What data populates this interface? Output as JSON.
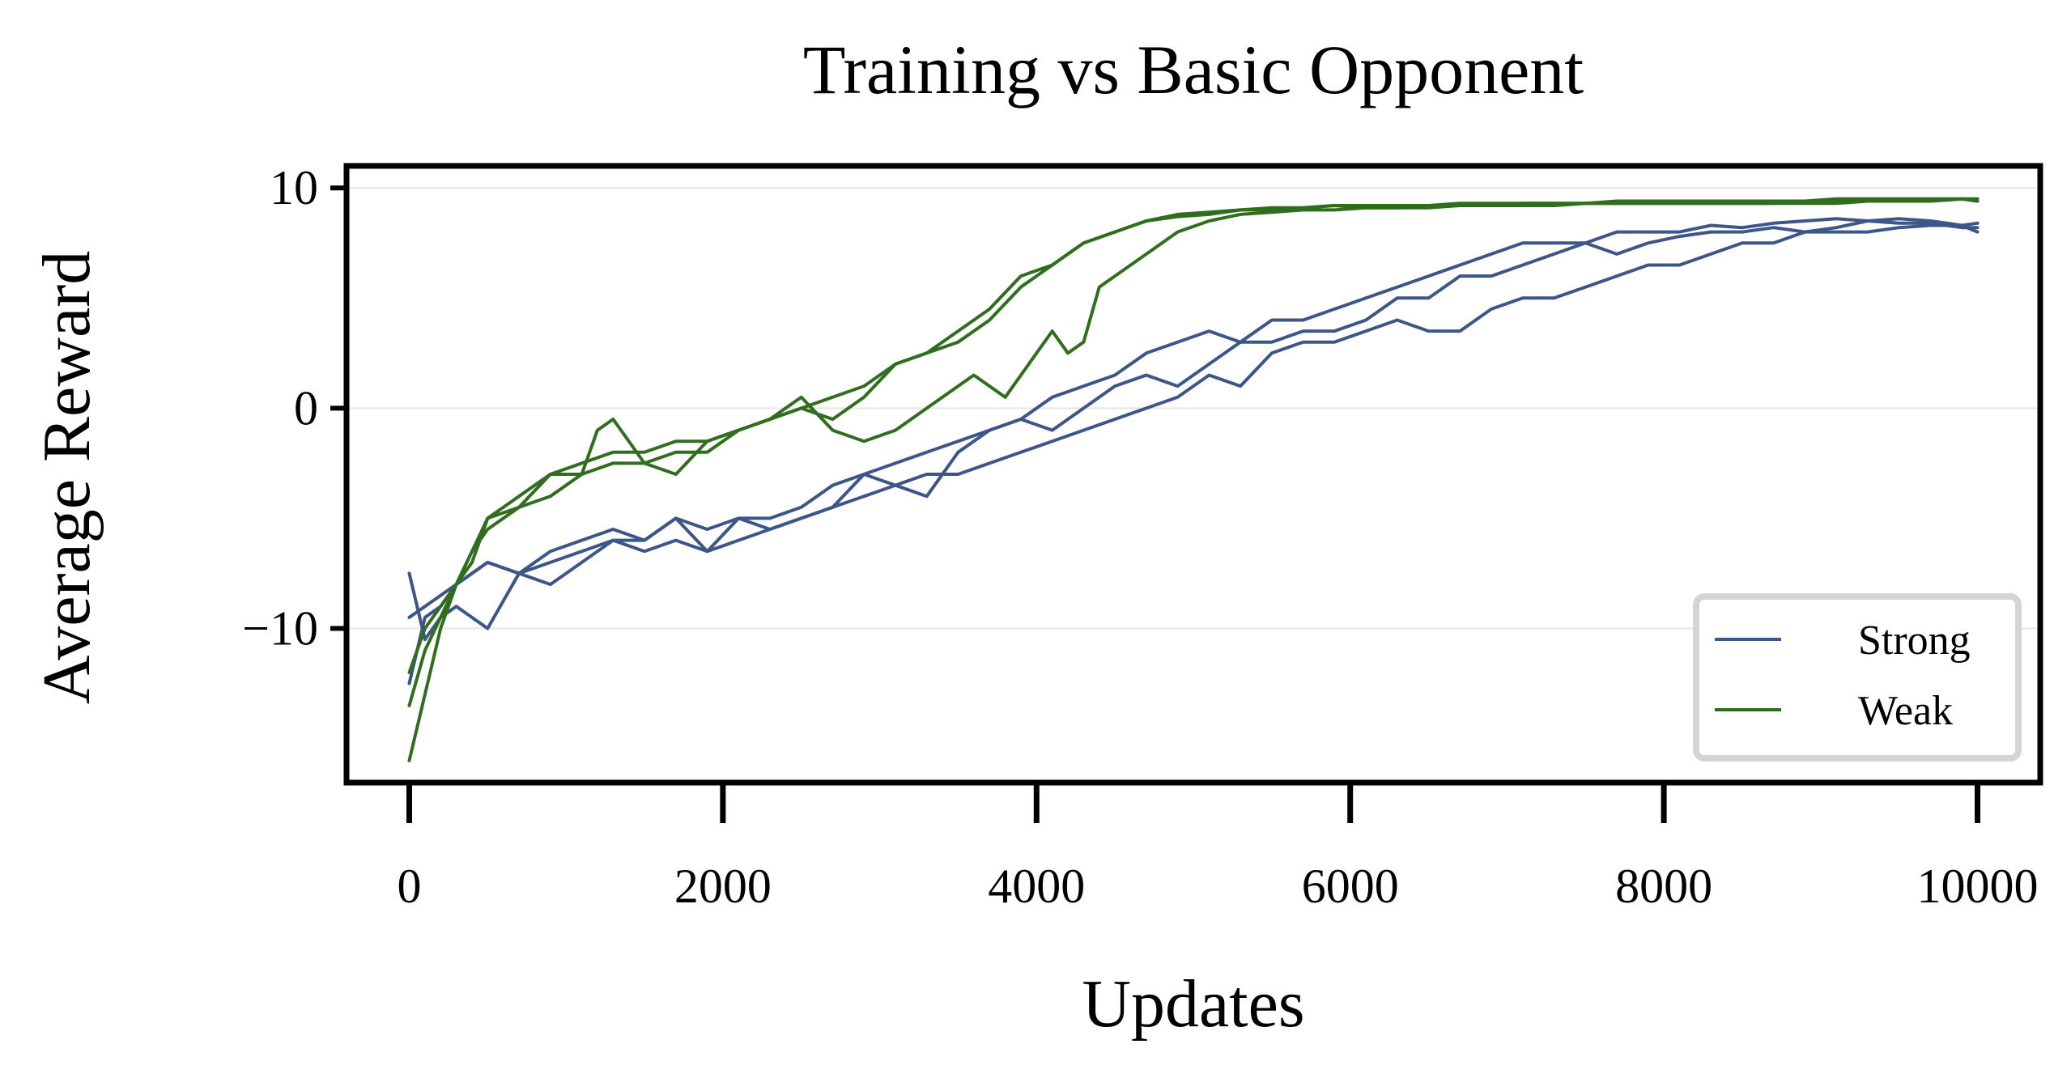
{
  "chart_data": {
    "type": "line",
    "title": "Training vs Basic Opponent",
    "xlabel": "Updates",
    "ylabel": "Average Reward",
    "xlim": [
      -400,
      10400
    ],
    "ylim": [
      -17,
      11
    ],
    "xticks": [
      0,
      2000,
      4000,
      6000,
      8000,
      10000
    ],
    "yticks": [
      -10,
      0,
      10
    ],
    "ytick_labels": [
      "−10",
      "0",
      "10"
    ],
    "grid": "horizontal",
    "legend": {
      "position": "lower-right",
      "entries": [
        {
          "label": "Strong",
          "color": "#3d5688"
        },
        {
          "label": "Weak",
          "color": "#2f6e1e"
        }
      ]
    },
    "series": [
      {
        "group": "Strong",
        "color": "#3d5688",
        "x": [
          0,
          100,
          200,
          300,
          500,
          700,
          900,
          1100,
          1300,
          1500,
          1700,
          1900,
          2100,
          2300,
          2500,
          2700,
          2900,
          3100,
          3300,
          3500,
          3700,
          3900,
          4100,
          4300,
          4500,
          4700,
          4900,
          5100,
          5300,
          5500,
          5700,
          5900,
          6100,
          6300,
          6500,
          6700,
          6900,
          7100,
          7300,
          7500,
          7700,
          7900,
          8100,
          8300,
          8500,
          8700,
          8900,
          9100,
          9300,
          9500,
          9700,
          9900,
          10000
        ],
        "y": [
          -7.5,
          -10.5,
          -9.5,
          -9.0,
          -10.0,
          -7.5,
          -8.0,
          -7.0,
          -6.0,
          -6.5,
          -6.0,
          -6.5,
          -5.0,
          -5.5,
          -5.0,
          -4.5,
          -3.0,
          -3.5,
          -4.0,
          -2.0,
          -1.0,
          -0.5,
          -1.0,
          0.0,
          1.0,
          1.5,
          1.0,
          2.0,
          3.0,
          3.0,
          3.5,
          3.5,
          4.0,
          5.0,
          5.0,
          6.0,
          6.0,
          6.5,
          7.0,
          7.5,
          7.0,
          7.5,
          7.8,
          8.0,
          8.0,
          8.2,
          8.0,
          8.2,
          8.5,
          8.4,
          8.4,
          8.2,
          8.2
        ]
      },
      {
        "group": "Strong",
        "color": "#3d5688",
        "x": [
          0,
          100,
          200,
          300,
          500,
          700,
          900,
          1100,
          1300,
          1500,
          1700,
          1900,
          2100,
          2300,
          2500,
          2700,
          2900,
          3100,
          3300,
          3500,
          3700,
          3900,
          4100,
          4300,
          4500,
          4700,
          4900,
          5100,
          5300,
          5500,
          5700,
          5900,
          6100,
          6300,
          6500,
          6700,
          6900,
          7100,
          7300,
          7500,
          7700,
          7900,
          8100,
          8300,
          8500,
          8700,
          8900,
          9100,
          9300,
          9500,
          9700,
          9900,
          10000
        ],
        "y": [
          -12.5,
          -9.5,
          -9.0,
          -8.0,
          -7.0,
          -7.5,
          -7.0,
          -6.5,
          -6.0,
          -6.0,
          -5.0,
          -5.5,
          -5.0,
          -5.0,
          -4.5,
          -3.5,
          -3.0,
          -2.5,
          -2.0,
          -1.5,
          -1.0,
          -0.5,
          0.5,
          1.0,
          1.5,
          2.5,
          3.0,
          3.5,
          3.0,
          4.0,
          4.0,
          4.5,
          5.0,
          5.5,
          6.0,
          6.5,
          7.0,
          7.5,
          7.5,
          7.5,
          8.0,
          8.0,
          8.0,
          8.3,
          8.2,
          8.4,
          8.5,
          8.6,
          8.5,
          8.6,
          8.5,
          8.3,
          8.4
        ]
      },
      {
        "group": "Strong",
        "color": "#3d5688",
        "x": [
          0,
          100,
          200,
          300,
          500,
          700,
          900,
          1100,
          1300,
          1500,
          1700,
          1900,
          2100,
          2300,
          2500,
          2700,
          2900,
          3100,
          3300,
          3500,
          3700,
          3900,
          4100,
          4300,
          4500,
          4700,
          4900,
          5100,
          5300,
          5500,
          5700,
          5900,
          6100,
          6300,
          6500,
          6700,
          6900,
          7100,
          7300,
          7500,
          7700,
          7900,
          8100,
          8300,
          8500,
          8700,
          8900,
          9100,
          9300,
          9500,
          9700,
          9900,
          10000
        ],
        "y": [
          -9.5,
          -9.0,
          -8.5,
          -8.0,
          -7.0,
          -7.5,
          -6.5,
          -6.0,
          -5.5,
          -6.0,
          -5.0,
          -6.5,
          -6.0,
          -5.5,
          -5.0,
          -4.5,
          -4.0,
          -3.5,
          -3.0,
          -3.0,
          -2.5,
          -2.0,
          -1.5,
          -1.0,
          -0.5,
          0.0,
          0.5,
          1.5,
          1.0,
          2.5,
          3.0,
          3.0,
          3.5,
          4.0,
          3.5,
          3.5,
          4.5,
          5.0,
          5.0,
          5.5,
          6.0,
          6.5,
          6.5,
          7.0,
          7.5,
          7.5,
          8.0,
          8.0,
          8.0,
          8.2,
          8.3,
          8.3,
          8.0
        ]
      },
      {
        "group": "Weak",
        "color": "#2f6e1e",
        "x": [
          0,
          100,
          200,
          300,
          400,
          500,
          700,
          900,
          1100,
          1300,
          1500,
          1700,
          1900,
          2100,
          2300,
          2500,
          2700,
          2900,
          3100,
          3300,
          3500,
          3700,
          3900,
          4100,
          4300,
          4500,
          4700,
          4900,
          5100,
          5300,
          5500,
          5700,
          5900,
          6100,
          6300,
          6500,
          6700,
          6900,
          7100,
          7300,
          7500,
          7700,
          7900,
          8100,
          8300,
          8500,
          8700,
          8900,
          9100,
          9300,
          9500,
          9700,
          9900,
          10000
        ],
        "y": [
          -16.0,
          -13.0,
          -10.0,
          -8.0,
          -7.0,
          -5.0,
          -4.0,
          -3.0,
          -2.5,
          -2.0,
          -2.0,
          -1.5,
          -1.5,
          -1.0,
          -0.5,
          0.0,
          0.5,
          1.0,
          2.0,
          2.5,
          3.5,
          4.5,
          6.0,
          6.5,
          7.5,
          8.0,
          8.5,
          8.7,
          8.8,
          9.0,
          9.0,
          9.1,
          9.2,
          9.1,
          9.1,
          9.2,
          9.2,
          9.2,
          9.3,
          9.3,
          9.3,
          9.3,
          9.3,
          9.3,
          9.3,
          9.3,
          9.3,
          9.4,
          9.4,
          9.4,
          9.4,
          9.4,
          9.5,
          9.4
        ]
      },
      {
        "group": "Weak",
        "color": "#2f6e1e",
        "x": [
          0,
          100,
          200,
          300,
          400,
          500,
          700,
          900,
          1100,
          1300,
          1500,
          1700,
          1900,
          2100,
          2300,
          2500,
          2700,
          2900,
          3100,
          3300,
          3500,
          3700,
          3900,
          4100,
          4300,
          4500,
          4700,
          4900,
          5100,
          5300,
          5500,
          5700,
          5900,
          6100,
          6300,
          6500,
          6700,
          6900,
          7100,
          7300,
          7500,
          7700,
          7900,
          8100,
          8300,
          8500,
          8700,
          8900,
          9100,
          9300,
          9500,
          9700,
          9900,
          10000
        ],
        "y": [
          -12.0,
          -10.0,
          -9.0,
          -8.0,
          -6.5,
          -5.0,
          -4.5,
          -3.0,
          -3.0,
          -2.5,
          -2.5,
          -2.0,
          -2.0,
          -1.0,
          -0.5,
          0.0,
          -0.5,
          0.5,
          2.0,
          2.5,
          3.0,
          4.0,
          5.5,
          6.5,
          7.5,
          8.0,
          8.5,
          8.8,
          8.9,
          9.0,
          9.1,
          9.1,
          9.2,
          9.2,
          9.2,
          9.2,
          9.3,
          9.3,
          9.3,
          9.3,
          9.3,
          9.4,
          9.4,
          9.4,
          9.4,
          9.4,
          9.4,
          9.4,
          9.5,
          9.5,
          9.5,
          9.5,
          9.5,
          9.5
        ]
      },
      {
        "group": "Weak",
        "color": "#2f6e1e",
        "x": [
          0,
          100,
          200,
          300,
          400,
          500,
          700,
          900,
          1100,
          1200,
          1300,
          1500,
          1700,
          1900,
          2100,
          2300,
          2500,
          2700,
          2900,
          3100,
          3300,
          3500,
          3600,
          3800,
          4000,
          4100,
          4200,
          4300,
          4400,
          4500,
          4700,
          4900,
          5100,
          5300,
          5500,
          5700,
          5900,
          6100,
          6300,
          6500,
          6700,
          6900,
          7100,
          7300,
          7500,
          7700,
          7900,
          8100,
          8300,
          8500,
          8700,
          8900,
          9100,
          9300,
          9500,
          9700,
          9900,
          10000
        ],
        "y": [
          -13.5,
          -11.0,
          -9.5,
          -8.0,
          -6.5,
          -5.5,
          -4.5,
          -4.0,
          -3.0,
          -1.0,
          -0.5,
          -2.5,
          -3.0,
          -1.5,
          -1.0,
          -0.5,
          0.5,
          -1.0,
          -1.5,
          -1.0,
          0.0,
          1.0,
          1.5,
          0.5,
          2.5,
          3.5,
          2.5,
          3.0,
          5.5,
          6.0,
          7.0,
          8.0,
          8.5,
          8.8,
          8.9,
          9.0,
          9.0,
          9.1,
          9.1,
          9.1,
          9.2,
          9.2,
          9.2,
          9.2,
          9.3,
          9.3,
          9.3,
          9.3,
          9.3,
          9.3,
          9.3,
          9.3,
          9.3,
          9.4,
          9.4,
          9.4,
          9.5,
          9.4
        ]
      }
    ]
  }
}
